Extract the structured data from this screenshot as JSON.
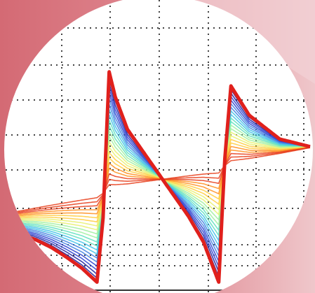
{
  "chart_data": {
    "type": "line",
    "title": "",
    "xlabel": "",
    "ylabel": "",
    "xlim": [
      0,
      10
    ],
    "ylim": [
      -1,
      1
    ],
    "grid": true,
    "legend": "none",
    "envelope_color": "#e0201c",
    "colormap": [
      "#1c1c9c",
      "#2a3fcf",
      "#3f7fe0",
      "#40c0e8",
      "#5fe0c0",
      "#9ff0a0",
      "#e8f070",
      "#ffcc40",
      "#ff9020",
      "#e8401c"
    ],
    "series": [
      {
        "x": [
          0.0,
          0.5,
          1.0,
          1.5,
          2.0,
          2.5,
          3.0,
          3.2,
          3.4,
          3.6,
          4.0,
          5.0,
          6.0,
          6.5,
          7.0,
          7.2,
          7.4,
          8.0,
          9.0,
          10.0
        ],
        "y": [
          -0.5,
          -0.55,
          -0.6,
          -0.67,
          -0.76,
          -0.86,
          -0.99,
          -0.4,
          0.95,
          0.72,
          0.42,
          0.02,
          -0.38,
          -0.62,
          -0.99,
          0.15,
          0.82,
          0.55,
          0.33,
          0.26
        ]
      }
    ]
  },
  "colors": {
    "background": "#d9757e",
    "accent_light": "#eab8bd",
    "plot_fill": "#ffffff",
    "grid": "#444444",
    "axis": "#333333"
  }
}
